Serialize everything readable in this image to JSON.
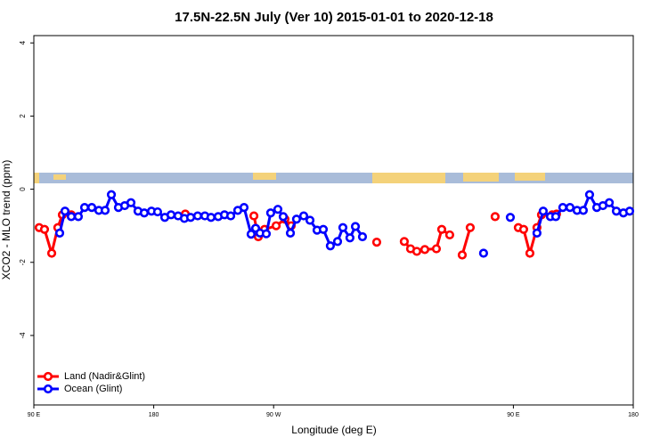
{
  "chart_data": {
    "type": "line",
    "title": "17.5N-22.5N July (Ver 10)   2015-01-01 to 2020-12-18",
    "x_label": "Longitude (deg E)",
    "y_label": "XCO2 - MLO trend (ppm)",
    "xlim": [
      90,
      540
    ],
    "ylim": [
      -5.9,
      4.2
    ],
    "xticks": [
      {
        "value": 90,
        "label": "90 E"
      },
      180,
      {
        "value": 270,
        "label": "90 W"
      },
      {
        "value": 450,
        "label": "90 E"
      },
      {
        "value": 540,
        "label": "180"
      }
    ],
    "yticks": [
      4,
      2,
      0,
      -2,
      -4
    ],
    "legend": "bottomleft",
    "series": [
      {
        "name": "Land (Nadir&Glint)",
        "color": "#ff0000",
        "x": [
          94.0,
          98.0,
          103.4,
          108.0,
          111.4,
          118.1,
          null,
          203.7,
          null,
          255.2,
          258.5,
          263.2,
          271.9,
          278.5,
          283.2,
          null,
          347.4,
          null,
          368.1,
          372.8,
          377.5,
          383.5,
          392.2,
          396.2,
          402.2,
          null,
          411.6,
          417.6,
          null,
          436.3,
          null,
          453.7,
          457.7,
          462.4,
          467.7,
          471.1,
          479.1,
          482.4
        ],
        "values": [
          -1.05,
          -1.1,
          -1.75,
          -1.05,
          -0.7,
          -0.7,
          null,
          -0.68,
          null,
          -0.73,
          -1.3,
          -1.1,
          -1.0,
          -0.82,
          -1.0,
          null,
          -1.45,
          null,
          -1.43,
          -1.63,
          -1.7,
          -1.65,
          -1.63,
          -1.1,
          -1.25,
          null,
          -1.8,
          -1.05,
          null,
          -0.75,
          null,
          -1.05,
          -1.1,
          -1.75,
          -1.05,
          -0.7,
          -0.7,
          -0.68
        ]
      },
      {
        "name": "Ocean (Glint)",
        "color": "#0000ff",
        "x": [
          109.4,
          113.4,
          118.1,
          123.4,
          128.1,
          133.5,
          138.8,
          143.5,
          148.2,
          153.5,
          158.2,
          162.9,
          168.2,
          172.9,
          178.3,
          182.9,
          188.3,
          193.0,
          198.3,
          203.0,
          207.7,
          213.0,
          218.4,
          223.0,
          228.4,
          233.1,
          237.8,
          243.1,
          247.8,
          253.1,
          256.5,
          259.8,
          264.5,
          267.8,
          273.2,
          277.2,
          282.6,
          287.2,
          292.6,
          297.3,
          302.6,
          307.3,
          312.6,
          318.0,
          322.0,
          327.3,
          331.4,
          336.7,
          null,
          427.6,
          null,
          447.7,
          null,
          467.7,
          472.4,
          477.8,
          481.8,
          487.1,
          492.5,
          497.8,
          502.5,
          507.2,
          512.6,
          517.2,
          522.0,
          527.3,
          532.6,
          537.3
        ],
        "values": [
          -1.2,
          -0.6,
          -0.75,
          -0.75,
          -0.5,
          -0.5,
          -0.58,
          -0.58,
          -0.15,
          -0.5,
          -0.45,
          -0.37,
          -0.6,
          -0.65,
          -0.6,
          -0.62,
          -0.77,
          -0.7,
          -0.73,
          -0.8,
          -0.77,
          -0.73,
          -0.73,
          -0.77,
          -0.75,
          -0.7,
          -0.73,
          -0.58,
          -0.5,
          -1.23,
          -1.07,
          -1.2,
          -1.22,
          -0.65,
          -0.55,
          -0.75,
          -1.2,
          -0.82,
          -0.73,
          -0.85,
          -1.12,
          -1.1,
          -1.55,
          -1.43,
          -1.05,
          -1.33,
          -1.02,
          -1.3,
          null,
          -1.75,
          null,
          -0.77,
          null,
          -1.2,
          -0.6,
          -0.75,
          -0.75,
          -0.5,
          -0.5,
          -0.58,
          -0.58,
          -0.15,
          -0.5,
          -0.45,
          -0.37,
          -0.6,
          -0.65,
          -0.6
        ]
      }
    ]
  }
}
